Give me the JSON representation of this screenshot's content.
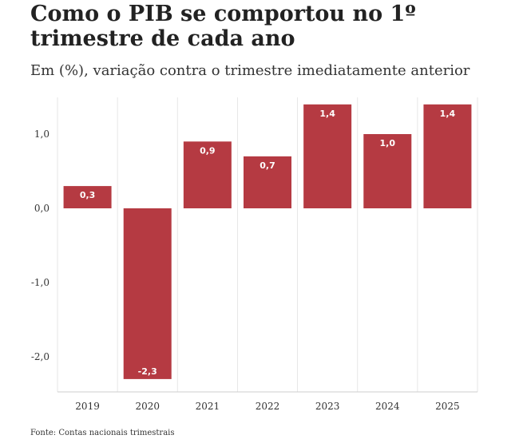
{
  "header": {
    "title": "Como o PIB se comportou no 1º trimestre de cada ano",
    "subtitle": "Em (%), variação contra o trimestre imediatamente anterior"
  },
  "footer": {
    "source": "Fonte: Contas nacionais trimestrais"
  },
  "colors": {
    "bar": "#b53a42",
    "grid": "#e6e6e6"
  },
  "chart_data": {
    "type": "bar",
    "title": "Como o PIB se comportou no 1º trimestre de cada ano",
    "subtitle": "Em (%), variação contra o trimestre imediatamente anterior",
    "categories": [
      "2019",
      "2020",
      "2021",
      "2022",
      "2023",
      "2024",
      "2025"
    ],
    "values": [
      0.3,
      -2.3,
      0.9,
      0.7,
      1.4,
      1.0,
      1.4
    ],
    "value_labels": [
      "0,3",
      "-2,3",
      "0,9",
      "0,7",
      "1,4",
      "1,0",
      "1,4"
    ],
    "yticks": [
      1.0,
      0.0,
      -1.0,
      -2.0
    ],
    "ytick_labels": [
      "1,0",
      "0,0",
      "-1,0",
      "-2,0"
    ],
    "ylim": [
      -2.5,
      1.4
    ],
    "grid": true,
    "legend": "none"
  }
}
